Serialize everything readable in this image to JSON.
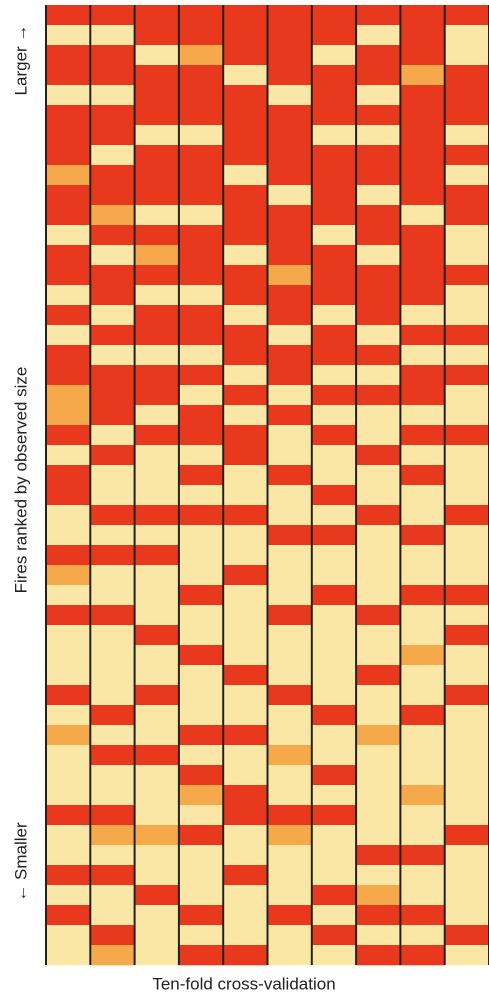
{
  "chart_data": {
    "type": "heatmap",
    "x_label": "Ten-fold cross-validation",
    "y_label": "Fires ranked by observed size",
    "y_top_label": "Larger →",
    "y_bottom_label": "← Smaller",
    "level_colors": [
      "#fbe7a5",
      "#f5a94a",
      "#e8391f"
    ],
    "columns": [
      [
        2,
        0,
        2,
        2,
        0,
        2,
        2,
        2,
        1,
        2,
        2,
        0,
        2,
        2,
        0,
        2,
        0,
        2,
        2,
        1,
        1,
        2,
        0,
        2,
        2,
        0,
        0,
        2,
        1,
        0,
        2,
        0,
        0,
        0,
        2,
        0,
        1,
        0,
        0,
        0,
        2,
        0,
        0,
        2,
        0,
        2,
        0,
        0
      ],
      [
        2,
        0,
        2,
        2,
        0,
        2,
        2,
        0,
        2,
        2,
        1,
        2,
        0,
        2,
        2,
        0,
        2,
        0,
        2,
        2,
        2,
        0,
        2,
        0,
        0,
        2,
        0,
        2,
        0,
        0,
        2,
        0,
        0,
        0,
        0,
        2,
        0,
        2,
        0,
        0,
        2,
        1,
        0,
        2,
        0,
        0,
        2,
        1
      ],
      [
        2,
        2,
        0,
        2,
        2,
        2,
        0,
        2,
        2,
        2,
        0,
        2,
        1,
        2,
        0,
        2,
        2,
        0,
        2,
        2,
        0,
        2,
        0,
        0,
        0,
        2,
        0,
        2,
        0,
        0,
        0,
        2,
        0,
        0,
        2,
        0,
        0,
        2,
        0,
        0,
        0,
        1,
        0,
        0,
        2,
        0,
        0,
        0
      ],
      [
        2,
        2,
        1,
        2,
        2,
        2,
        0,
        2,
        2,
        2,
        0,
        2,
        2,
        2,
        0,
        2,
        2,
        0,
        2,
        0,
        2,
        2,
        0,
        2,
        0,
        2,
        0,
        0,
        0,
        2,
        0,
        0,
        2,
        0,
        0,
        0,
        2,
        0,
        2,
        1,
        0,
        2,
        0,
        0,
        0,
        2,
        0,
        2
      ],
      [
        2,
        2,
        2,
        0,
        2,
        2,
        2,
        2,
        0,
        2,
        2,
        2,
        0,
        2,
        2,
        0,
        2,
        2,
        0,
        2,
        0,
        2,
        2,
        0,
        0,
        2,
        0,
        0,
        2,
        0,
        0,
        0,
        0,
        2,
        0,
        0,
        2,
        0,
        0,
        2,
        2,
        0,
        0,
        2,
        0,
        0,
        0,
        2
      ],
      [
        2,
        2,
        2,
        2,
        0,
        2,
        2,
        2,
        2,
        0,
        2,
        2,
        2,
        1,
        2,
        2,
        0,
        2,
        2,
        0,
        2,
        0,
        0,
        2,
        0,
        0,
        2,
        0,
        0,
        0,
        2,
        0,
        0,
        0,
        2,
        0,
        0,
        1,
        0,
        0,
        2,
        1,
        0,
        0,
        0,
        2,
        0,
        0
      ],
      [
        2,
        2,
        0,
        2,
        2,
        2,
        0,
        2,
        2,
        2,
        2,
        0,
        2,
        2,
        2,
        0,
        2,
        2,
        0,
        2,
        0,
        2,
        0,
        0,
        2,
        0,
        2,
        0,
        0,
        2,
        0,
        0,
        0,
        0,
        0,
        2,
        0,
        0,
        2,
        0,
        2,
        0,
        0,
        0,
        2,
        0,
        2,
        0
      ],
      [
        2,
        0,
        2,
        2,
        0,
        2,
        0,
        2,
        2,
        0,
        2,
        2,
        0,
        2,
        2,
        2,
        0,
        2,
        0,
        2,
        0,
        0,
        2,
        0,
        0,
        2,
        0,
        0,
        0,
        0,
        2,
        0,
        0,
        2,
        0,
        0,
        1,
        0,
        0,
        0,
        0,
        0,
        2,
        0,
        1,
        2,
        0,
        2
      ],
      [
        2,
        2,
        2,
        1,
        2,
        2,
        2,
        2,
        2,
        2,
        0,
        2,
        2,
        2,
        2,
        0,
        2,
        0,
        2,
        2,
        0,
        2,
        0,
        2,
        0,
        0,
        2,
        0,
        0,
        2,
        0,
        0,
        1,
        0,
        0,
        2,
        0,
        0,
        0,
        1,
        0,
        0,
        2,
        0,
        0,
        2,
        0,
        2
      ],
      [
        2,
        0,
        0,
        2,
        2,
        2,
        0,
        2,
        0,
        2,
        2,
        0,
        0,
        2,
        0,
        0,
        2,
        0,
        2,
        0,
        0,
        2,
        0,
        0,
        0,
        2,
        0,
        0,
        0,
        2,
        0,
        2,
        0,
        0,
        2,
        0,
        0,
        0,
        0,
        0,
        0,
        2,
        0,
        0,
        0,
        0,
        2,
        0
      ]
    ]
  }
}
